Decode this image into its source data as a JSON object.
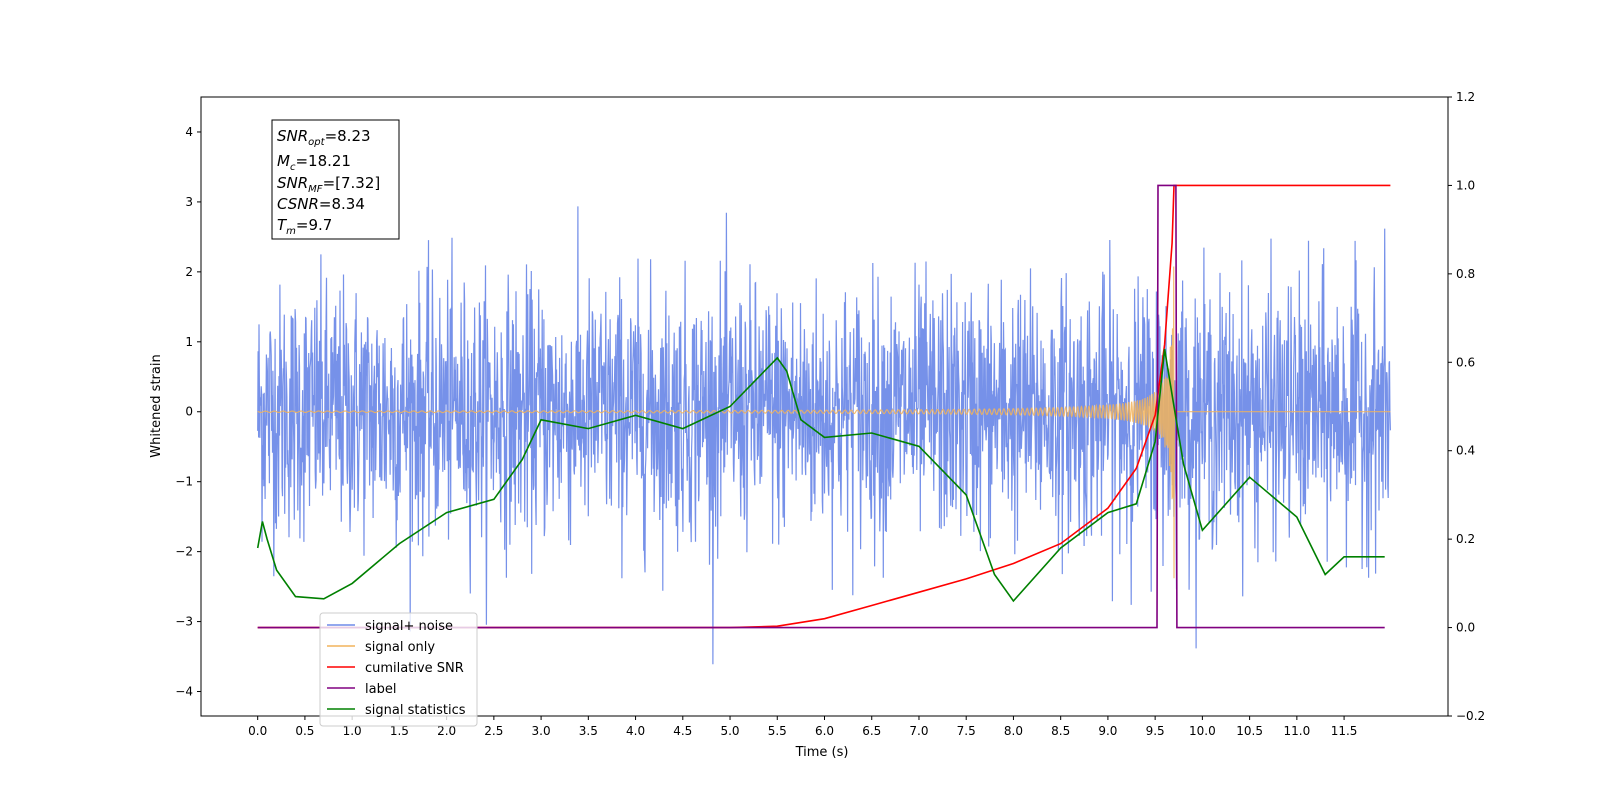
{
  "chart_data": {
    "type": "line",
    "xlabel": "Time (s)",
    "ylabel_left": "Whitened strain",
    "xlim": [
      -0.6,
      12.6
    ],
    "ylim_left": [
      -4.35,
      4.5
    ],
    "ylim_right": [
      -0.2,
      1.2
    ],
    "x_ticks": [
      "0.0",
      "0.5",
      "1.0",
      "1.5",
      "2.0",
      "2.5",
      "3.0",
      "3.5",
      "4.0",
      "4.5",
      "5.0",
      "5.5",
      "6.0",
      "6.5",
      "7.0",
      "7.5",
      "8.0",
      "8.5",
      "9.0",
      "9.5",
      "10.0",
      "10.5",
      "11.0",
      "11.5"
    ],
    "y_ticks_left": [
      "4",
      "3",
      "2",
      "1",
      "0",
      "−1",
      "−2",
      "−3",
      "−4"
    ],
    "y_ticks_right": [
      "1.2",
      "1.0",
      "0.8",
      "0.6",
      "0.4",
      "0.2",
      "0.0",
      "−0.2"
    ],
    "grid": false,
    "legend_position": "lower-left",
    "info_box": {
      "snr_opt": {
        "sym": "SNR",
        "sub": "opt",
        "val": "=8.23"
      },
      "mc": {
        "sym": "M",
        "sub": "c",
        "val": "=18.21"
      },
      "snr_mf": {
        "sym": "SNR",
        "sub": "MF",
        "val": "=[7.32]"
      },
      "csnr": {
        "sym": "CSNR",
        "sub": "",
        "val": "=8.34"
      },
      "tm": {
        "sym": "T",
        "sub": "m",
        "val": "=9.7"
      }
    },
    "series": [
      {
        "name": "signal+ noise",
        "color": "#6f8be8",
        "axis": "left",
        "noise_std": 0.9,
        "x_range": [
          0.0,
          11.99
        ]
      },
      {
        "name": "signal only",
        "color": "#f2b35b",
        "axis": "left",
        "merger_time": 9.7,
        "peak_amplitude": 2.5
      },
      {
        "name": "cumilative SNR",
        "color": "#ff0000",
        "axis": "right",
        "x": [
          0.0,
          5.0,
          5.5,
          6.0,
          6.5,
          7.0,
          7.5,
          8.0,
          8.5,
          9.0,
          9.3,
          9.5,
          9.6,
          9.68,
          9.7,
          11.99
        ],
        "y": [
          0.0,
          0.0,
          0.003,
          0.02,
          0.05,
          0.08,
          0.11,
          0.145,
          0.19,
          0.27,
          0.36,
          0.48,
          0.64,
          0.87,
          1.0,
          1.0
        ]
      },
      {
        "name": "label",
        "color": "#800080",
        "axis": "right",
        "x": [
          0.0,
          9.52,
          9.53,
          9.72,
          9.73,
          11.93
        ],
        "y": [
          0.0,
          0.0,
          1.0,
          1.0,
          0.0,
          0.0
        ]
      },
      {
        "name": "signal statistics",
        "color": "#008000",
        "axis": "right",
        "x": [
          0.0,
          0.05,
          0.1,
          0.2,
          0.4,
          0.7,
          1.0,
          1.5,
          2.0,
          2.5,
          2.8,
          3.0,
          3.5,
          4.0,
          4.5,
          5.0,
          5.5,
          5.6,
          5.75,
          6.0,
          6.5,
          7.0,
          7.5,
          7.8,
          8.0,
          8.5,
          9.0,
          9.3,
          9.5,
          9.6,
          9.7,
          9.8,
          10.0,
          10.5,
          11.0,
          11.3,
          11.5,
          11.93
        ],
        "y": [
          0.18,
          0.24,
          0.2,
          0.13,
          0.07,
          0.065,
          0.1,
          0.19,
          0.26,
          0.29,
          0.38,
          0.47,
          0.45,
          0.48,
          0.45,
          0.5,
          0.61,
          0.58,
          0.47,
          0.43,
          0.44,
          0.41,
          0.3,
          0.12,
          0.06,
          0.18,
          0.26,
          0.28,
          0.42,
          0.63,
          0.5,
          0.37,
          0.22,
          0.34,
          0.25,
          0.12,
          0.16,
          0.16
        ]
      }
    ],
    "legend": [
      {
        "label": "signal+ noise",
        "color": "#6f8be8"
      },
      {
        "label": "signal only",
        "color": "#f2b35b"
      },
      {
        "label": "cumilative SNR",
        "color": "#ff0000"
      },
      {
        "label": "label",
        "color": "#800080"
      },
      {
        "label": "signal statistics",
        "color": "#008000"
      }
    ]
  }
}
